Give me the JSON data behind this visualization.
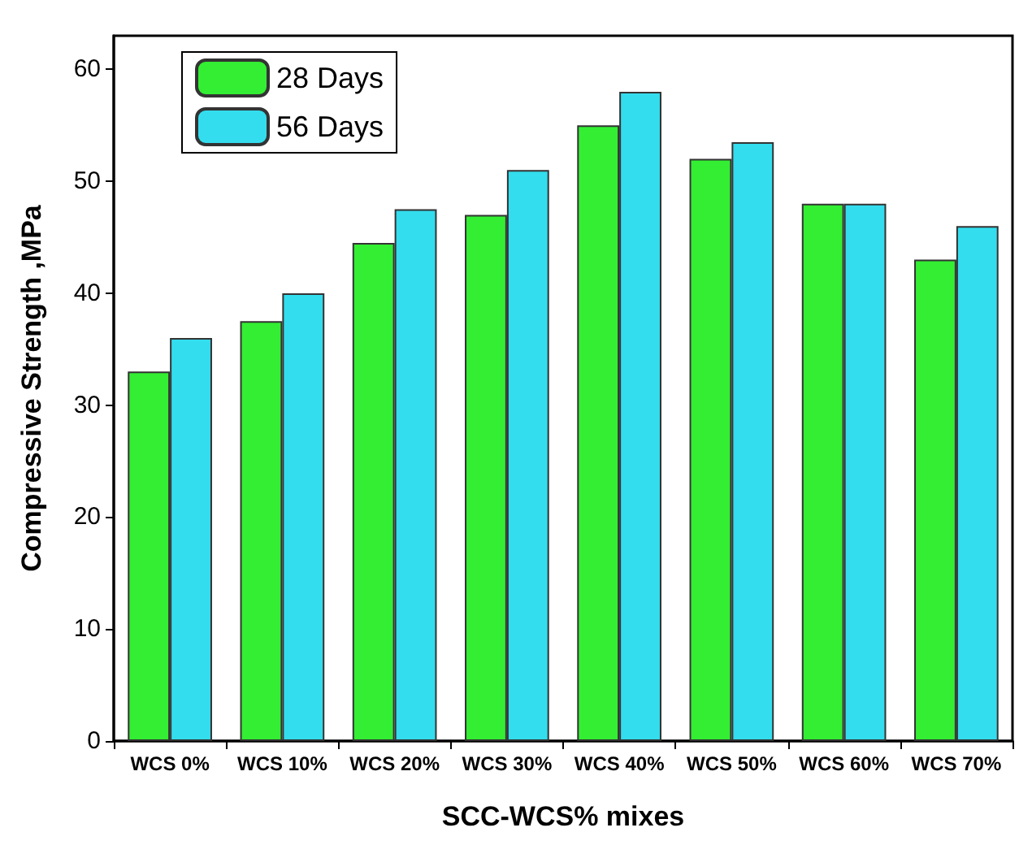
{
  "chart_data": {
    "type": "bar",
    "xlabel": "SCC-WCS% mixes",
    "ylabel": "Compressive Strength ,MPa",
    "categories": [
      "WCS 0%",
      "WCS 10%",
      "WCS 20%",
      "WCS 30%",
      "WCS 40%",
      "WCS 50%",
      "WCS 60%",
      "WCS 70%"
    ],
    "series": [
      {
        "name": "28 Days",
        "color": "#33ee33",
        "values": [
          33,
          37.5,
          44.5,
          47,
          55,
          52,
          48,
          43
        ]
      },
      {
        "name": "56 Days",
        "color": "#33ddee",
        "values": [
          36,
          40,
          47.5,
          51,
          58,
          53.5,
          48,
          46
        ]
      }
    ],
    "ylim": [
      0,
      63
    ],
    "yticks": [
      0,
      10,
      20,
      30,
      40,
      50,
      60
    ],
    "grid": false,
    "legend": "top left"
  }
}
